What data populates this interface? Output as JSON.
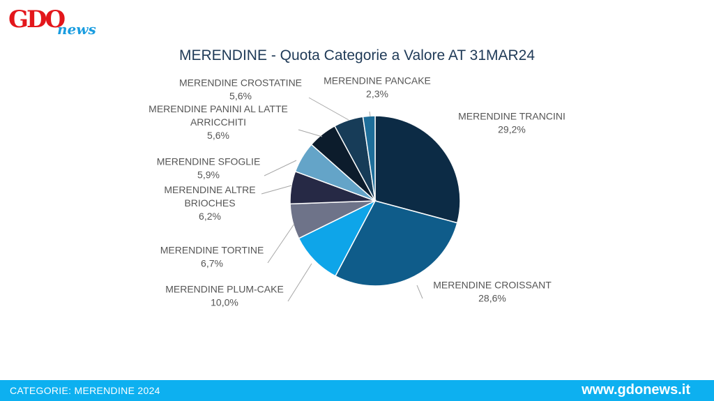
{
  "logo": {
    "brand": "GDO",
    "suffix": "news"
  },
  "chart_data": {
    "type": "pie",
    "title": "MERENDINE - Quota Categorie a Valore AT 31MAR24",
    "slices": [
      {
        "label": "MERENDINE TRANCINI",
        "lines": [
          "MERENDINE TRANCINI"
        ],
        "value": 29.2,
        "display": "29,2%",
        "color": "#0c2b45"
      },
      {
        "label": "MERENDINE CROISSANT",
        "lines": [
          "MERENDINE CROISSANT"
        ],
        "value": 28.6,
        "display": "28,6%",
        "color": "#0f5c8a"
      },
      {
        "label": "MERENDINE PLUM-CAKE",
        "lines": [
          "MERENDINE PLUM-CAKE"
        ],
        "value": 10.0,
        "display": "10,0%",
        "color": "#0ea5e9"
      },
      {
        "label": "MERENDINE TORTINE",
        "lines": [
          "MERENDINE TORTINE"
        ],
        "value": 6.7,
        "display": "6,7%",
        "color": "#6e7389"
      },
      {
        "label": "MERENDINE ALTRE BRIOCHES",
        "lines": [
          "MERENDINE ALTRE",
          "BRIOCHES"
        ],
        "value": 6.2,
        "display": "6,2%",
        "color": "#262945"
      },
      {
        "label": "MERENDINE SFOGLIE",
        "lines": [
          "MERENDINE SFOGLIE"
        ],
        "value": 5.9,
        "display": "5,9%",
        "color": "#64a4c8"
      },
      {
        "label": "MERENDINE PANINI AL LATTE ARRICCHITI",
        "lines": [
          "MERENDINE PANINI AL LATTE",
          "ARRICCHITI"
        ],
        "value": 5.6,
        "display": "5,6%",
        "color": "#0c1c2c"
      },
      {
        "label": "MERENDINE CROSTATINE",
        "lines": [
          "MERENDINE CROSTATINE"
        ],
        "value": 5.6,
        "display": "5,6%",
        "color": "#173c58"
      },
      {
        "label": "MERENDINE PANCAKE",
        "lines": [
          "MERENDINE PANCAKE"
        ],
        "value": 2.3,
        "display": "2,3%",
        "color": "#1e6e9a"
      }
    ]
  },
  "footer": {
    "category": "CATEGORIE: MERENDINE 2024",
    "website": "www.gdonews.it"
  }
}
